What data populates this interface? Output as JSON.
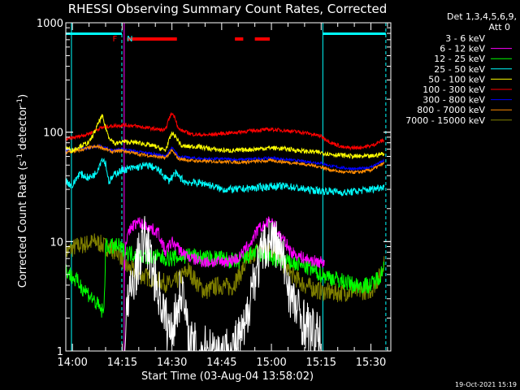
{
  "chart_data": {
    "type": "line",
    "title": "RHESSI Observing Summary Count Rates, Corrected",
    "xlabel": "Start Time (03-Aug-04 13:58:02)",
    "ylabel_main": "Corrected Count Rate (s",
    "ylabel_sup1": "-1",
    "ylabel_mid": " detector",
    "ylabel_sup2": "-1",
    "ylabel_end": ")",
    "yscale": "log",
    "ylim": [
      1,
      1000
    ],
    "xlim_minutes": [
      -2,
      96
    ],
    "xticks": [
      {
        "m": 0,
        "label": "14:00"
      },
      {
        "m": 15,
        "label": "14:15"
      },
      {
        "m": 30,
        "label": "14:30"
      },
      {
        "m": 45,
        "label": "14:45"
      },
      {
        "m": 60,
        "label": "15:00"
      },
      {
        "m": 75,
        "label": "15:15"
      },
      {
        "m": 90,
        "label": "15:30"
      }
    ],
    "yticks": [
      {
        "v": 1,
        "label": "1"
      },
      {
        "v": 10,
        "label": "10"
      },
      {
        "v": 100,
        "label": "100"
      },
      {
        "v": 1000,
        "label": "1000"
      }
    ],
    "legend_header": [
      "Det 1,3,4,5,6,9,",
      "Att 0"
    ],
    "legend_position": "right",
    "timestamp": "19-Oct-2021 15:19",
    "flags": [
      {
        "label": "F",
        "m": 12.8,
        "color": "#ff0000"
      },
      {
        "label": "N",
        "m": 17.3,
        "color": "#00ffff"
      }
    ],
    "night_intervals": [
      [
        -2,
        14.9
      ],
      [
        75.5,
        94.5
      ]
    ],
    "flare_intervals": [
      [
        16.5,
        31.5
      ],
      [
        49,
        51.5
      ],
      [
        55,
        59.5
      ]
    ],
    "vlines": [
      {
        "m": -0.3,
        "color": "#00ffff",
        "style": "solid"
      },
      {
        "m": 14.9,
        "color": "#00ffff",
        "style": "dash"
      },
      {
        "m": 15.6,
        "color": "#ff00ff",
        "style": "solid"
      },
      {
        "m": 75.5,
        "color": "#00ffff",
        "style": "solid"
      },
      {
        "m": 94.5,
        "color": "#00ffff",
        "style": "dash"
      }
    ],
    "series": [
      {
        "name": "3 - 6 keV",
        "color": "#ffffff",
        "legend_color": "#000000",
        "noise": 0.55,
        "points": [
          [
            15.8,
            1
          ],
          [
            16,
            2
          ],
          [
            18,
            4
          ],
          [
            20,
            7
          ],
          [
            22,
            11
          ],
          [
            24,
            6
          ],
          [
            26,
            3.5
          ],
          [
            28,
            2
          ],
          [
            29,
            1.5
          ],
          [
            31,
            2
          ],
          [
            33,
            4
          ],
          [
            35,
            1.2
          ],
          [
            38,
            1
          ],
          [
            42,
            1
          ],
          [
            48,
            1
          ],
          [
            52,
            1.5
          ],
          [
            54,
            4
          ],
          [
            56,
            6
          ],
          [
            58,
            9
          ],
          [
            60,
            11
          ],
          [
            62,
            9
          ],
          [
            64,
            6
          ],
          [
            66,
            3
          ],
          [
            69,
            2
          ],
          [
            72,
            1.5
          ],
          [
            74,
            1.3
          ],
          [
            75,
            1.2
          ]
        ]
      },
      {
        "name": "6 - 12 keV",
        "color": "#ff00ff",
        "noise": 0.13,
        "points": [
          [
            15.6,
            4
          ],
          [
            16,
            10
          ],
          [
            18,
            14
          ],
          [
            20,
            15
          ],
          [
            22,
            14
          ],
          [
            24,
            13
          ],
          [
            26,
            12
          ],
          [
            28,
            8
          ],
          [
            30,
            10
          ],
          [
            33,
            8
          ],
          [
            36,
            7
          ],
          [
            40,
            6.5
          ],
          [
            45,
            6.5
          ],
          [
            50,
            7
          ],
          [
            54,
            10
          ],
          [
            56,
            13
          ],
          [
            58,
            14
          ],
          [
            60,
            16
          ],
          [
            62,
            12
          ],
          [
            64,
            10
          ],
          [
            66,
            8
          ],
          [
            70,
            7
          ],
          [
            74,
            6.5
          ],
          [
            76,
            6.5
          ]
        ]
      },
      {
        "name": "12 - 25 keV",
        "color": "#00ff00",
        "noise": 0.18,
        "points": [
          [
            -2,
            5.5
          ],
          [
            5,
            3.3
          ],
          [
            9.5,
            2.2
          ],
          [
            10,
            9
          ],
          [
            14,
            9
          ],
          [
            16,
            8
          ],
          [
            20,
            7.5
          ],
          [
            25,
            7.2
          ],
          [
            30,
            7
          ],
          [
            35,
            7.5
          ],
          [
            40,
            7
          ],
          [
            45,
            7
          ],
          [
            50,
            6.5
          ],
          [
            55,
            8
          ],
          [
            60,
            7
          ],
          [
            65,
            6.5
          ],
          [
            70,
            6
          ],
          [
            75,
            5
          ],
          [
            80,
            4.5
          ],
          [
            85,
            4
          ],
          [
            90,
            4
          ],
          [
            93,
            5
          ],
          [
            94,
            6
          ]
        ]
      },
      {
        "name": "25 - 50 keV",
        "color": "#00ffff",
        "noise": 0.08,
        "points": [
          [
            -2,
            36
          ],
          [
            0,
            32
          ],
          [
            2,
            42
          ],
          [
            5,
            38
          ],
          [
            7,
            42
          ],
          [
            9,
            58
          ],
          [
            10,
            52
          ],
          [
            11,
            35
          ],
          [
            13,
            42
          ],
          [
            15,
            45
          ],
          [
            20,
            48
          ],
          [
            23,
            50
          ],
          [
            26,
            45
          ],
          [
            29,
            36
          ],
          [
            31,
            42
          ],
          [
            34,
            35
          ],
          [
            40,
            34
          ],
          [
            45,
            30
          ],
          [
            50,
            30
          ],
          [
            55,
            31
          ],
          [
            60,
            32
          ],
          [
            65,
            32
          ],
          [
            70,
            30
          ],
          [
            75,
            29
          ],
          [
            78,
            29
          ],
          [
            82,
            28
          ],
          [
            86,
            29
          ],
          [
            90,
            30
          ],
          [
            94,
            32
          ]
        ]
      },
      {
        "name": "50 - 100 keV",
        "color": "#ffff00",
        "noise": 0.05,
        "points": [
          [
            -2,
            72
          ],
          [
            0,
            68
          ],
          [
            2,
            74
          ],
          [
            5,
            80
          ],
          [
            7,
            105
          ],
          [
            8,
            125
          ],
          [
            9,
            140
          ],
          [
            10,
            110
          ],
          [
            11,
            90
          ],
          [
            13,
            78
          ],
          [
            15,
            82
          ],
          [
            20,
            80
          ],
          [
            25,
            74
          ],
          [
            28,
            68
          ],
          [
            30,
            98
          ],
          [
            31,
            92
          ],
          [
            33,
            74
          ],
          [
            38,
            74
          ],
          [
            42,
            70
          ],
          [
            46,
            68
          ],
          [
            50,
            68
          ],
          [
            55,
            70
          ],
          [
            60,
            72
          ],
          [
            65,
            70
          ],
          [
            70,
            67
          ],
          [
            75,
            65
          ],
          [
            78,
            63
          ],
          [
            80,
            62
          ],
          [
            85,
            60
          ],
          [
            90,
            60
          ],
          [
            94,
            64
          ]
        ]
      },
      {
        "name": "100 - 300 keV",
        "color": "#ff0000",
        "noise": 0.04,
        "points": [
          [
            -2,
            86
          ],
          [
            1,
            90
          ],
          [
            4,
            95
          ],
          [
            6,
            100
          ],
          [
            8,
            108
          ],
          [
            10,
            112
          ],
          [
            12,
            114
          ],
          [
            15,
            116
          ],
          [
            18,
            115
          ],
          [
            22,
            110
          ],
          [
            26,
            106
          ],
          [
            28,
            104
          ],
          [
            29,
            130
          ],
          [
            30,
            150
          ],
          [
            31,
            135
          ],
          [
            32,
            106
          ],
          [
            36,
            96
          ],
          [
            40,
            94
          ],
          [
            45,
            97
          ],
          [
            50,
            100
          ],
          [
            55,
            104
          ],
          [
            60,
            106
          ],
          [
            65,
            103
          ],
          [
            70,
            99
          ],
          [
            75,
            92
          ],
          [
            78,
            80
          ],
          [
            82,
            72
          ],
          [
            86,
            72
          ],
          [
            90,
            75
          ],
          [
            94,
            85
          ]
        ]
      },
      {
        "name": "300 - 800 keV",
        "color": "#0000ff",
        "noise": 0.03,
        "points": [
          [
            -2,
            68
          ],
          [
            2,
            70
          ],
          [
            5,
            72
          ],
          [
            8,
            75
          ],
          [
            10,
            72
          ],
          [
            12,
            68
          ],
          [
            15,
            70
          ],
          [
            20,
            66
          ],
          [
            25,
            63
          ],
          [
            28,
            60
          ],
          [
            30,
            72
          ],
          [
            32,
            60
          ],
          [
            36,
            58
          ],
          [
            40,
            57
          ],
          [
            45,
            57
          ],
          [
            50,
            56
          ],
          [
            55,
            57
          ],
          [
            60,
            58
          ],
          [
            65,
            56
          ],
          [
            70,
            54
          ],
          [
            75,
            52
          ],
          [
            78,
            49
          ],
          [
            82,
            47
          ],
          [
            86,
            46
          ],
          [
            90,
            48
          ],
          [
            94,
            55
          ]
        ]
      },
      {
        "name": "800 - 7000 keV",
        "color": "#ff8c00",
        "noise": 0.035,
        "points": [
          [
            -2,
            65
          ],
          [
            2,
            68
          ],
          [
            5,
            72
          ],
          [
            8,
            74
          ],
          [
            10,
            70
          ],
          [
            12,
            66
          ],
          [
            15,
            68
          ],
          [
            20,
            63
          ],
          [
            25,
            60
          ],
          [
            28,
            58
          ],
          [
            30,
            68
          ],
          [
            32,
            57
          ],
          [
            36,
            55
          ],
          [
            40,
            54
          ],
          [
            45,
            54
          ],
          [
            50,
            53
          ],
          [
            55,
            54
          ],
          [
            60,
            55
          ],
          [
            65,
            53
          ],
          [
            70,
            51
          ],
          [
            75,
            48
          ],
          [
            78,
            45
          ],
          [
            82,
            43
          ],
          [
            86,
            43
          ],
          [
            90,
            45
          ],
          [
            94,
            52
          ]
        ]
      },
      {
        "name": "7000 - 15000 keV",
        "color": "#808000",
        "noise": 0.2,
        "points": [
          [
            -2,
            8
          ],
          [
            1,
            9
          ],
          [
            4,
            9.5
          ],
          [
            7,
            10
          ],
          [
            10,
            9
          ],
          [
            14,
            8
          ],
          [
            16,
            6
          ],
          [
            20,
            5
          ],
          [
            25,
            4.5
          ],
          [
            30,
            4
          ],
          [
            35,
            5.5
          ],
          [
            38,
            4
          ],
          [
            40,
            3.5
          ],
          [
            44,
            4
          ],
          [
            48,
            3.8
          ],
          [
            52,
            6
          ],
          [
            55,
            8
          ],
          [
            58,
            9
          ],
          [
            60,
            8.5
          ],
          [
            62,
            7.5
          ],
          [
            64,
            6
          ],
          [
            66,
            5
          ],
          [
            70,
            4
          ],
          [
            75,
            3.5
          ],
          [
            80,
            3.4
          ],
          [
            85,
            3.5
          ],
          [
            90,
            3.6
          ],
          [
            93,
            5
          ],
          [
            94,
            7
          ]
        ]
      }
    ]
  }
}
